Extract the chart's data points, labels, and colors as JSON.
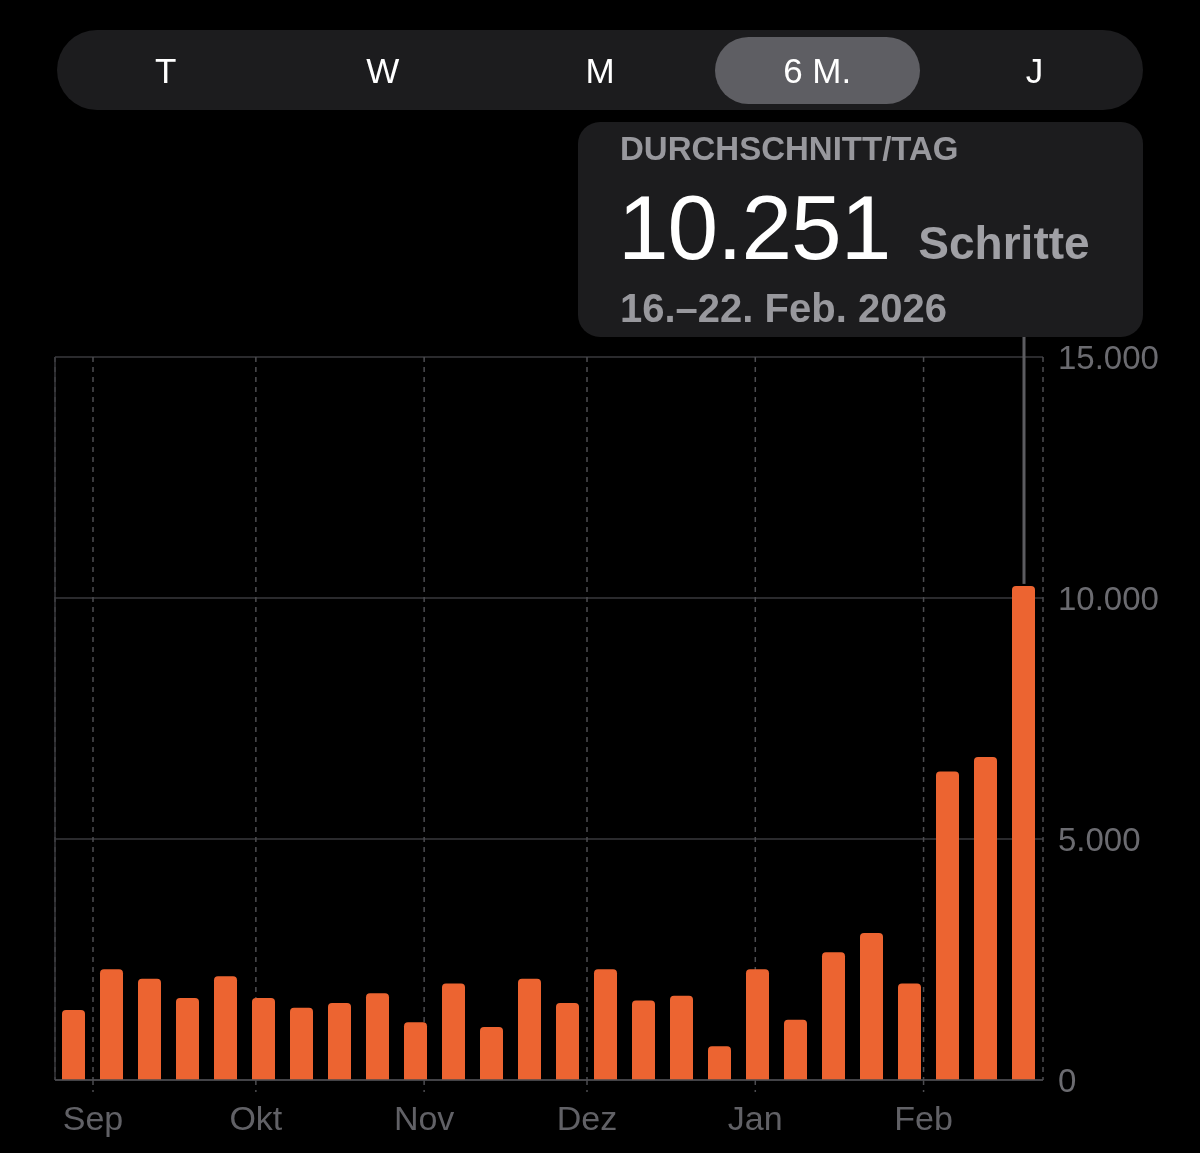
{
  "chart_data": {
    "type": "bar",
    "x": [
      "2025-08-28T12:00",
      "2025-09-04T12:00",
      "2025-09-11T12:00",
      "2025-09-18T12:00",
      "2025-09-25T12:00",
      "2025-10-02T12:00",
      "2025-10-09T12:00",
      "2025-10-16T12:00",
      "2025-10-23T12:00",
      "2025-10-30T12:00",
      "2025-11-06T12:00",
      "2025-11-13T12:00",
      "2025-11-20T12:00",
      "2025-11-27T12:00",
      "2025-12-04T12:00",
      "2025-12-11T12:00",
      "2025-12-18T12:00",
      "2025-12-25T12:00",
      "2026-01-01T12:00",
      "2026-01-08T12:00",
      "2026-01-15T12:00",
      "2026-01-22T12:00",
      "2026-01-29T12:00",
      "2026-02-05T12:00",
      "2026-02-12T12:00",
      "2026-02-19T12:00"
    ],
    "values": [
      1450,
      2300,
      2100,
      1700,
      2150,
      1700,
      1500,
      1600,
      1800,
      1200,
      2000,
      1100,
      2100,
      1600,
      2300,
      1650,
      1750,
      700,
      2300,
      1250,
      2650,
      3050,
      2000,
      6400,
      6700,
      10251
    ],
    "color": "#ec6431",
    "xlim": [
      "2025-08-25",
      "2026-02-23"
    ],
    "xticks": [
      {
        "value": "2025-09-01",
        "label": "Sep"
      },
      {
        "value": "2025-10-01",
        "label": "Okt"
      },
      {
        "value": "2025-11-01",
        "label": "Nov"
      },
      {
        "value": "2025-12-01",
        "label": "Dez"
      },
      {
        "value": "2026-01-01",
        "label": "Jan"
      },
      {
        "value": "2026-02-01",
        "label": "Feb"
      }
    ],
    "ylim": [
      0,
      15000
    ],
    "yticks": [
      0,
      {
        "value": 5000,
        "label": "5.000"
      },
      {
        "value": 10000,
        "label": "10.000"
      },
      {
        "value": 15000,
        "label": "15.000"
      }
    ],
    "grid": true,
    "annotations": [
      "T",
      "W",
      "M",
      "6 M.",
      "J",
      "DURCHSCHNITT/TAG",
      "10.251 Schritte",
      "16.–22. Feb. 2026"
    ]
  }
}
